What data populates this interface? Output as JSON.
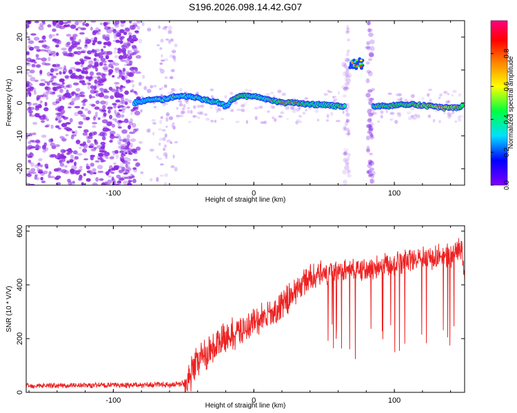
{
  "title": "S196.2026.098.14.42.G07",
  "chart_data": [
    {
      "type": "heatmap",
      "name": "spectrogram",
      "xlabel": "Height of straight line (km)",
      "ylabel": "Frequency (Hz)",
      "xlim": [
        -162,
        150
      ],
      "ylim": [
        -25,
        25
      ],
      "xticks": [
        -100,
        0,
        100
      ],
      "xtick_labels": [
        "-100",
        "0",
        "100"
      ],
      "yticks": [
        -20,
        -10,
        0,
        10,
        20
      ],
      "ytick_labels": [
        "-20",
        "-10",
        "0",
        "10",
        "20"
      ],
      "colorbar": {
        "label": "Normalized spectral amplitude",
        "range": [
          0,
          1
        ],
        "ticks": [
          0.0,
          0.2,
          0.4,
          0.6,
          0.8
        ],
        "tick_labels": [
          "0.0",
          "0.2",
          "0.4",
          "0.6",
          "0.8"
        ],
        "colors": [
          "#8000ff",
          "#0000ff",
          "#00e0ff",
          "#00ff40",
          "#ffff00",
          "#ff8000",
          "#ff0000",
          "#ff0080"
        ]
      },
      "ridge": {
        "x": [
          -85,
          -75,
          -65,
          -55,
          -45,
          -35,
          -25,
          -20,
          -15,
          -10,
          0,
          10,
          20,
          30,
          40,
          50,
          60,
          65
        ],
        "y": [
          0,
          1,
          1,
          2,
          2,
          1,
          0,
          -1,
          1,
          2,
          2,
          1,
          0,
          0,
          -0.5,
          -0.5,
          -1,
          -1
        ],
        "amplitude": [
          0.3,
          0.4,
          0.5,
          0.5,
          0.4,
          0.55,
          0.6,
          0.35,
          0.7,
          0.75,
          0.6,
          0.55,
          0.85,
          0.8,
          0.65,
          0.6,
          0.7,
          0.6
        ]
      },
      "ridge2": {
        "x": [
          85,
          95,
          105,
          115,
          125,
          135,
          145,
          149
        ],
        "y": [
          -1,
          -1,
          -0.5,
          -0.5,
          -1,
          -1.5,
          -1.5,
          -1
        ],
        "amplitude": [
          0.6,
          0.7,
          0.75,
          0.8,
          0.85,
          0.9,
          0.85,
          0.7
        ]
      },
      "blob": {
        "x": 73,
        "y": 12,
        "amplitude": 0.8
      }
    },
    {
      "type": "line",
      "name": "snr",
      "xlabel": "Height of straight line (km)",
      "ylabel": "SNR (10 * V/V)",
      "xlim": [
        -162,
        150
      ],
      "ylim": [
        0,
        620
      ],
      "xticks": [
        -100,
        0,
        100
      ],
      "xtick_labels": [
        "-100",
        "0",
        "100"
      ],
      "yticks": [
        0,
        200,
        400,
        600
      ],
      "ytick_labels": [
        "0",
        "200",
        "400",
        "600"
      ],
      "color": "#ee2222",
      "envelope": {
        "x": [
          -162,
          -60,
          -48,
          -40,
          -30,
          -20,
          -10,
          0,
          10,
          20,
          30,
          40,
          60,
          80,
          100,
          120,
          140,
          148,
          150
        ],
        "y": [
          25,
          28,
          35,
          120,
          160,
          200,
          230,
          260,
          280,
          320,
          380,
          430,
          450,
          460,
          480,
          500,
          510,
          540,
          430
        ]
      },
      "dropouts": {
        "x_start": 50,
        "x_end": 148,
        "min": 120,
        "max": 260
      }
    }
  ]
}
